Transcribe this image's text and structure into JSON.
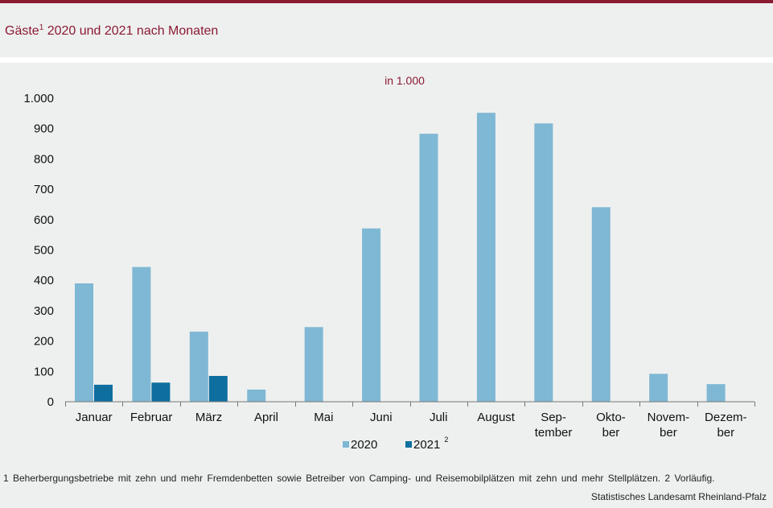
{
  "header": {
    "title_main": "Gäste",
    "title_sup": "1",
    "title_rest": " 2020 und 2021 nach Monaten"
  },
  "chart_data": {
    "type": "bar",
    "unit_label": "in 1.000",
    "categories": [
      [
        "Januar"
      ],
      [
        "Februar"
      ],
      [
        "März"
      ],
      [
        "April"
      ],
      [
        "Mai"
      ],
      [
        "Juni"
      ],
      [
        "Juli"
      ],
      [
        "August"
      ],
      [
        "Sep-",
        "tember"
      ],
      [
        "Okto-",
        "ber"
      ],
      [
        "Novem-",
        "ber"
      ],
      [
        "Dezem-",
        "ber"
      ]
    ],
    "series": [
      {
        "name": "2020",
        "color": "#7fb8d4",
        "values": [
          390,
          444,
          231,
          40,
          246,
          571,
          883,
          952,
          917,
          641,
          92,
          58
        ]
      },
      {
        "name": "2021",
        "name_sup": "2",
        "color": "#0e6f9f",
        "values": [
          56,
          63,
          85,
          null,
          null,
          null,
          null,
          null,
          null,
          null,
          null,
          null
        ]
      }
    ],
    "ylim": [
      0,
      1000
    ],
    "yticks": [
      0,
      100,
      200,
      300,
      400,
      500,
      600,
      700,
      800,
      900,
      1000
    ],
    "ytick_labels": [
      "0",
      "100",
      "200",
      "300",
      "400",
      "500",
      "600",
      "700",
      "800",
      "900",
      "1.000"
    ],
    "grid": false,
    "legend_position": "bottom-center"
  },
  "footer": {
    "footnote": "1 Beherbergungsbetriebe  mit zehn und mehr Fremdenbetten  sowie Betreiber von Camping-  und Reisemobilplätzen  mit zehn und mehr Stellplätzen.     2 Vorläufig.",
    "source": "Statistisches Landesamt Rheinland-Pfalz"
  }
}
